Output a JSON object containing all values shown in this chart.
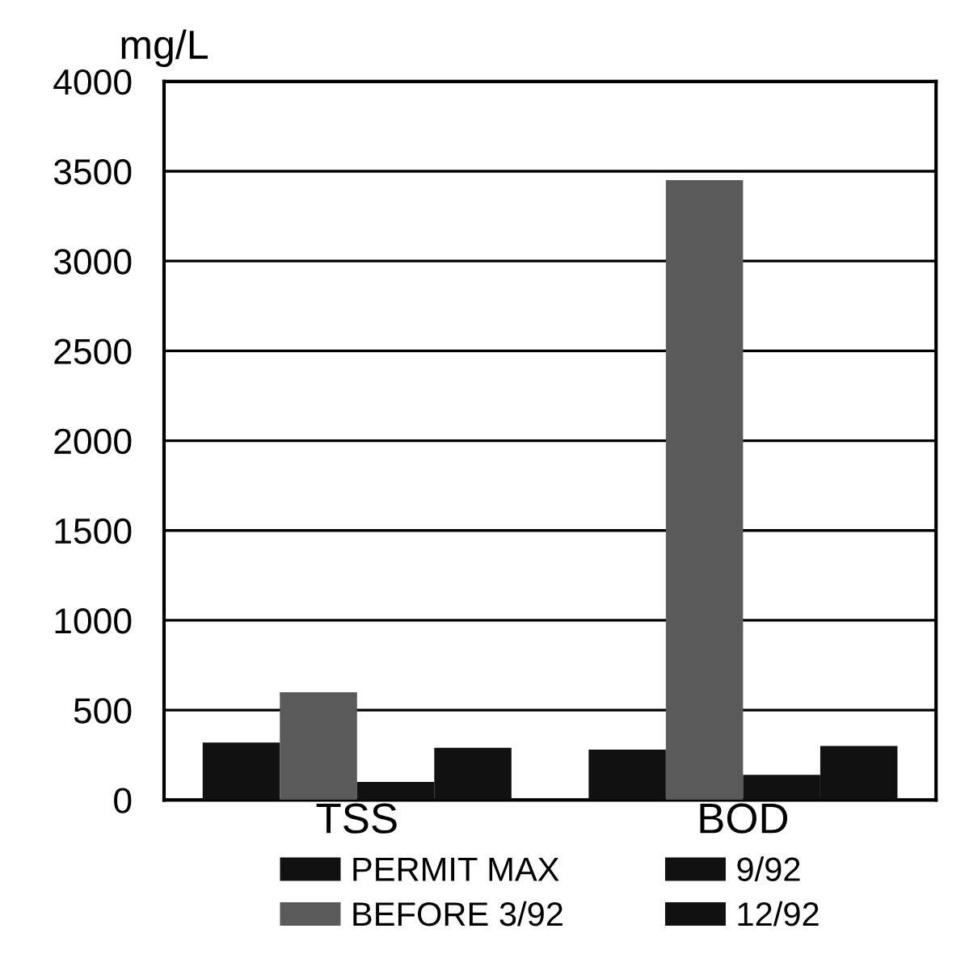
{
  "chart_data": {
    "type": "bar",
    "ylabel": "mg/L",
    "categories": [
      "TSS",
      "BOD"
    ],
    "series": [
      {
        "name": "PERMIT MAX",
        "color": "#111111",
        "values": [
          320,
          280
        ]
      },
      {
        "name": "BEFORE 3/92",
        "color": "#5a5a5a",
        "values": [
          600,
          3450
        ]
      },
      {
        "name": "9/92",
        "color": "#111111",
        "values": [
          100,
          140
        ]
      },
      {
        "name": "12/92",
        "color": "#111111",
        "values": [
          290,
          300
        ]
      }
    ],
    "ylim": [
      0,
      4000
    ],
    "yticks": [
      0,
      500,
      1000,
      1500,
      2000,
      2500,
      3000,
      3500,
      4000
    ],
    "grid": "y",
    "legend": "bottom"
  }
}
